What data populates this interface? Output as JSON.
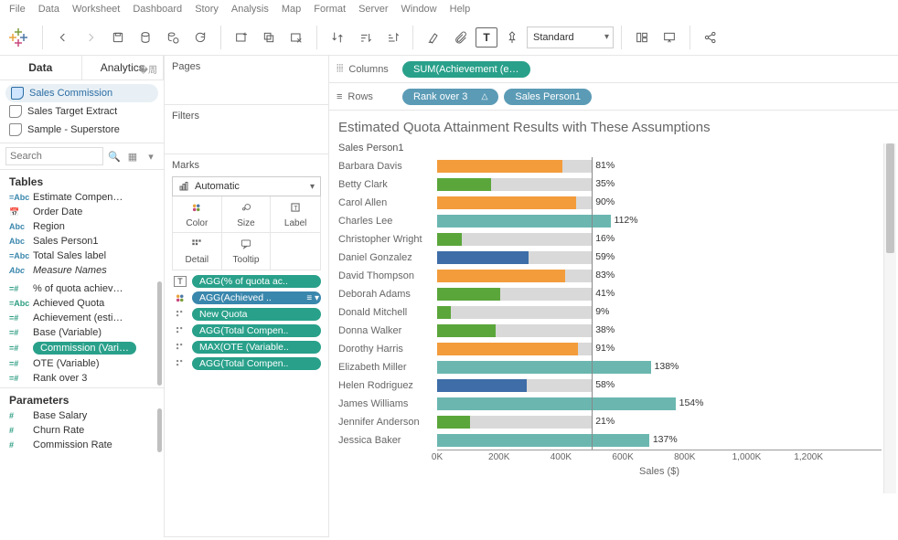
{
  "menu": [
    "File",
    "Data",
    "Worksheet",
    "Dashboard",
    "Story",
    "Analysis",
    "Map",
    "Format",
    "Server",
    "Window",
    "Help"
  ],
  "toolbar": {
    "fit_mode": "Standard"
  },
  "left": {
    "tabs": {
      "data": "Data",
      "analytics": "Analytics"
    },
    "datasources": [
      {
        "label": "Sales Commission",
        "active": true
      },
      {
        "label": "Sales Target Extract",
        "active": false
      },
      {
        "label": "Sample - Superstore",
        "active": false
      }
    ],
    "search_placeholder": "Search",
    "tables_title": "Tables",
    "dims": [
      {
        "icon": "=Abc",
        "label": "Estimate Compen…"
      },
      {
        "icon": "📅",
        "label": "Order Date"
      },
      {
        "icon": "Abc",
        "label": "Region"
      },
      {
        "icon": "Abc",
        "label": "Sales Person1"
      },
      {
        "icon": "=Abc",
        "label": "Total Sales label"
      },
      {
        "icon": "Abc",
        "label": "Measure Names",
        "italic": true
      }
    ],
    "meas": [
      {
        "icon": "=#",
        "label": "% of quota achiev…"
      },
      {
        "icon": "=Abc",
        "label": "Achieved Quota"
      },
      {
        "icon": "=#",
        "label": "Achievement (esti…"
      },
      {
        "icon": "=#",
        "label": "Base (Variable)"
      },
      {
        "icon": "=#",
        "label": "Commission (Vari…",
        "pill": true
      },
      {
        "icon": "=#",
        "label": "OTE (Variable)"
      },
      {
        "icon": "=#",
        "label": "Rank over 3"
      }
    ],
    "params_title": "Parameters",
    "params": [
      {
        "icon": "#",
        "label": "Base Salary"
      },
      {
        "icon": "#",
        "label": "Churn Rate"
      },
      {
        "icon": "#",
        "label": "Commission Rate"
      }
    ]
  },
  "mid": {
    "pages": "Pages",
    "filters": "Filters",
    "marks": "Marks",
    "mark_type": "Automatic",
    "cards": [
      {
        "key": "color",
        "label": "Color"
      },
      {
        "key": "size",
        "label": "Size"
      },
      {
        "key": "label",
        "label": "Label"
      },
      {
        "key": "detail",
        "label": "Detail"
      },
      {
        "key": "tooltip",
        "label": "Tooltip"
      }
    ],
    "pills": [
      {
        "icon": "T",
        "label": "AGG(% of quota ac..",
        "sel": false
      },
      {
        "icon": "dots",
        "label": "AGG(Achieved ..",
        "sel": true,
        "menu": true
      },
      {
        "icon": "dots2",
        "label": "New Quota",
        "sel": false
      },
      {
        "icon": "dots2",
        "label": "AGG(Total Compen..",
        "sel": false
      },
      {
        "icon": "dots2",
        "label": "MAX(OTE (Variable..",
        "sel": false
      },
      {
        "icon": "dots2",
        "label": "AGG(Total Compen..",
        "sel": false
      }
    ]
  },
  "shelves": {
    "columns": "Columns",
    "rows": "Rows",
    "col_pills": [
      {
        "label": "SUM(Achievement (e…",
        "cls": "green"
      }
    ],
    "row_pills": [
      {
        "label": "Rank over 3",
        "cls": "blue",
        "tri": true
      },
      {
        "label": "Sales Person1",
        "cls": "blue"
      }
    ]
  },
  "viz": {
    "title": "Estimated Quota Attainment Results with These Assumptions",
    "axis_header": "Sales Person1",
    "x_title": "Sales ($)",
    "x_max": 1300,
    "x_ticks": [
      {
        "v": 0,
        "l": "0K"
      },
      {
        "v": 200,
        "l": "200K"
      },
      {
        "v": 400,
        "l": "400K"
      },
      {
        "v": 600,
        "l": "600K"
      },
      {
        "v": 800,
        "l": "800K"
      },
      {
        "v": 1000,
        "l": "1,000K"
      },
      {
        "v": 1200,
        "l": "1,200K"
      }
    ],
    "ref_line": 500,
    "colors": {
      "orange": "#f39c3c",
      "green": "#5ba63b",
      "teal": "#6bb7b0",
      "blue": "#3e6da8",
      "gray": "#d9d9d9"
    },
    "rows": [
      {
        "name": "Barbara Davis",
        "bg": 500,
        "fg": 405,
        "color": "orange",
        "pct": "81%"
      },
      {
        "name": "Betty Clark",
        "bg": 500,
        "fg": 175,
        "color": "green",
        "pct": "35%"
      },
      {
        "name": "Carol Allen",
        "bg": 500,
        "fg": 450,
        "color": "orange",
        "pct": "90%"
      },
      {
        "name": "Charles Lee",
        "bg": 500,
        "fg": 560,
        "color": "teal",
        "pct": "112%"
      },
      {
        "name": "Christopher Wright",
        "bg": 500,
        "fg": 80,
        "color": "green",
        "pct": "16%"
      },
      {
        "name": "Daniel Gonzalez",
        "bg": 500,
        "fg": 295,
        "color": "blue",
        "pct": "59%"
      },
      {
        "name": "David Thompson",
        "bg": 500,
        "fg": 415,
        "color": "orange",
        "pct": "83%"
      },
      {
        "name": "Deborah Adams",
        "bg": 500,
        "fg": 205,
        "color": "green",
        "pct": "41%"
      },
      {
        "name": "Donald Mitchell",
        "bg": 500,
        "fg": 45,
        "color": "green",
        "pct": "9%"
      },
      {
        "name": "Donna Walker",
        "bg": 500,
        "fg": 190,
        "color": "green",
        "pct": "38%"
      },
      {
        "name": "Dorothy Harris",
        "bg": 500,
        "fg": 455,
        "color": "orange",
        "pct": "91%"
      },
      {
        "name": "Elizabeth Miller",
        "bg": 500,
        "fg": 690,
        "color": "teal",
        "pct": "138%"
      },
      {
        "name": "Helen Rodriguez",
        "bg": 500,
        "fg": 290,
        "color": "blue",
        "pct": "58%"
      },
      {
        "name": "James Williams",
        "bg": 500,
        "fg": 770,
        "color": "teal",
        "pct": "154%"
      },
      {
        "name": "Jennifer Anderson",
        "bg": 500,
        "fg": 105,
        "color": "green",
        "pct": "21%"
      },
      {
        "name": "Jessica Baker",
        "bg": 500,
        "fg": 685,
        "color": "teal",
        "pct": "137%"
      }
    ]
  }
}
